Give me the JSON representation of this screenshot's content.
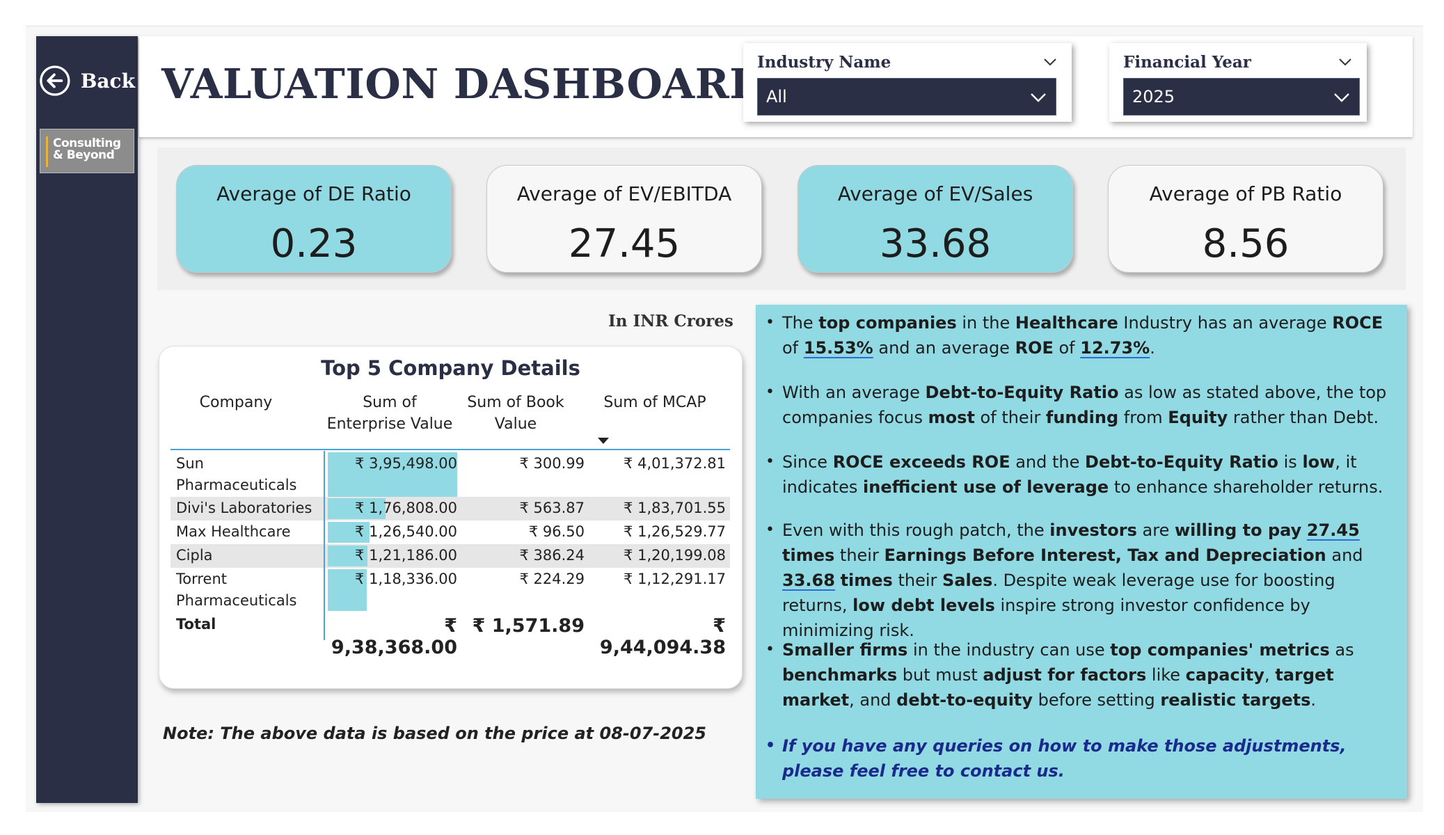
{
  "sidebar": {
    "back_label": "Back",
    "logo_line1": "Consulting",
    "logo_line2": "& Beyond"
  },
  "header": {
    "title": "VALUATION DASHBOARD"
  },
  "filters": {
    "industry": {
      "label": "Industry Name",
      "value": "All"
    },
    "year": {
      "label": "Financial Year",
      "value": "2025"
    }
  },
  "kpis": [
    {
      "label": "Average of DE Ratio",
      "value": "0.23"
    },
    {
      "label": "Average of EV/EBITDA",
      "value": "27.45"
    },
    {
      "label": "Average of EV/Sales",
      "value": "33.68"
    },
    {
      "label": "Average of PB Ratio",
      "value": "8.56"
    }
  ],
  "table": {
    "units": "In INR Crores",
    "title": "Top 5 Company Details",
    "headers": {
      "company": "Company",
      "ev_1": "Sum of",
      "ev_2": "Enterprise Value",
      "bv_1": "Sum of Book",
      "bv_2": "Value",
      "mcap": "Sum of MCAP"
    },
    "rows": [
      {
        "company_1": "Sun",
        "company_2": "Pharmaceuticals",
        "ev": "₹ 3,95,498.00",
        "bv": "₹ 300.99",
        "mcap": "₹ 4,01,372.81",
        "ev_value": 395498
      },
      {
        "company_1": "Divi's Laboratories",
        "company_2": "",
        "ev": "₹ 1,76,808.00",
        "bv": "₹ 563.87",
        "mcap": "₹ 1,83,701.55",
        "ev_value": 176808
      },
      {
        "company_1": "Max Healthcare",
        "company_2": "",
        "ev": "₹ 1,26,540.00",
        "bv": "₹ 96.50",
        "mcap": "₹ 1,26,529.77",
        "ev_value": 126540
      },
      {
        "company_1": "Cipla",
        "company_2": "",
        "ev": "₹ 1,21,186.00",
        "bv": "₹ 386.24",
        "mcap": "₹ 1,20,199.08",
        "ev_value": 121186
      },
      {
        "company_1": "Torrent",
        "company_2": "Pharmaceuticals",
        "ev": "₹ 1,18,336.00",
        "bv": "₹ 224.29",
        "mcap": "₹ 1,12,291.17",
        "ev_value": 118336
      }
    ],
    "total": {
      "label": "Total",
      "ev": "₹ 9,38,368.00",
      "bv": "₹ 1,571.89",
      "mcap": "₹ 9,44,094.38"
    }
  },
  "note": "Note: The above data is based on the price at 08-07-2025",
  "insights": {
    "b1": [
      "The ",
      "top companies",
      " in the ",
      "Healthcare",
      " Industry has an average ",
      "ROCE",
      " of ",
      "15.53%",
      " and an average ",
      "ROE",
      " of ",
      "12.73%",
      "."
    ],
    "b2": [
      "With an average ",
      "Debt-to-Equity Ratio",
      " as low as stated above, the top companies focus ",
      "most",
      " of their ",
      "funding",
      " from ",
      "Equity",
      " rather than Debt."
    ],
    "b3": [
      "Since ",
      "ROCE exceeds ROE",
      " and the ",
      "Debt-to-Equity Ratio",
      " is ",
      "low",
      ", it indicates ",
      "inefficient use of leverage",
      " to enhance shareholder returns."
    ],
    "b4": [
      "Even with this rough patch, the ",
      "investors",
      " are ",
      "willing to pay",
      " ",
      "27.45",
      " ",
      "times",
      " their ",
      "Earnings Before Interest, Tax and Depreciation",
      " and ",
      "33.68",
      " ",
      "times",
      " their ",
      "Sales",
      ". Despite weak leverage use for boosting returns, ",
      "low debt levels",
      " inspire strong investor confidence by minimizing risk."
    ],
    "b5": [
      "Smaller firms",
      " in the industry can use ",
      "top companies' metrics",
      " as ",
      "benchmarks",
      " but must ",
      "adjust for factors",
      " like ",
      "capacity",
      ", ",
      "target market",
      ", and ",
      "debt-to-equity",
      " before setting ",
      "realistic targets",
      "."
    ],
    "b6": "If you have any queries on how to make those adjustments, please feel free to contact us."
  },
  "colors": {
    "navy": "#2b2f45",
    "teal": "#92dae3",
    "accent_blue": "#4aa3d8"
  }
}
